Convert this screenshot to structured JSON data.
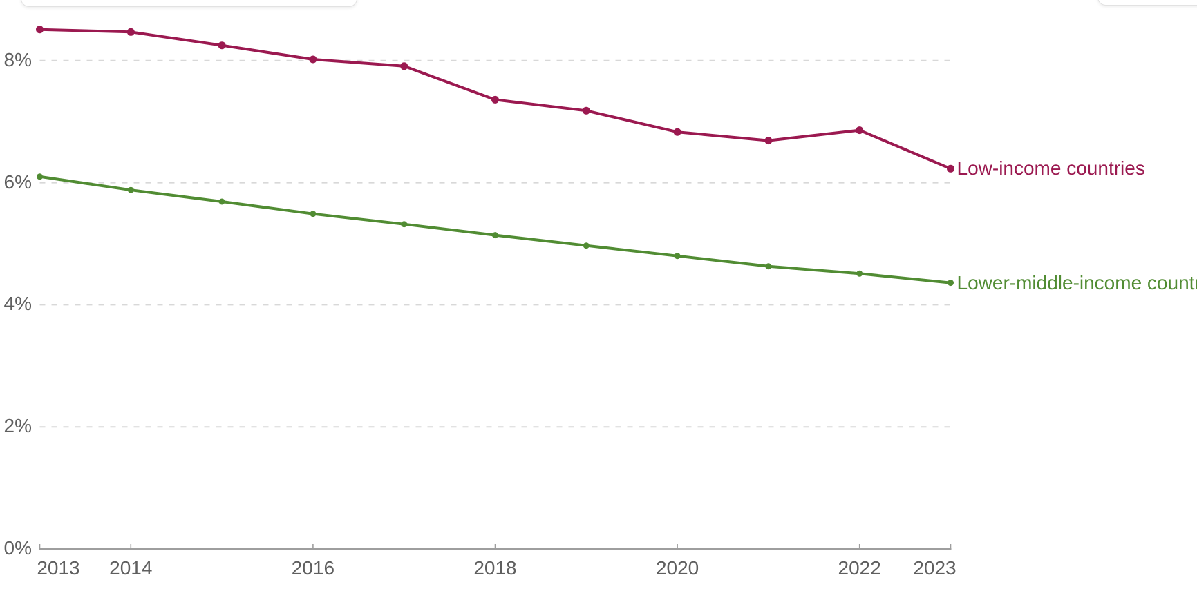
{
  "chart_data": {
    "type": "line",
    "title": "",
    "xlabel": "",
    "ylabel": "",
    "grid": "horizontal-dashed",
    "legend_position": "line-end-labels",
    "x": [
      2013,
      2014,
      2015,
      2016,
      2017,
      2018,
      2019,
      2020,
      2021,
      2022,
      2023
    ],
    "series": [
      {
        "name": "Low-income countries",
        "color": "#9B1950",
        "values": [
          8.51,
          8.47,
          8.25,
          8.02,
          7.91,
          7.36,
          7.18,
          6.83,
          6.69,
          6.86,
          6.23
        ]
      },
      {
        "name": "Lower-middle-income countries",
        "color": "#518C33",
        "values": [
          6.1,
          5.88,
          5.69,
          5.49,
          5.32,
          5.14,
          4.97,
          4.8,
          4.63,
          4.51,
          4.36
        ]
      }
    ],
    "ylim": [
      0,
      9
    ],
    "yticks": [
      {
        "value": 0,
        "label": "0%"
      },
      {
        "value": 2,
        "label": "2%"
      },
      {
        "value": 4,
        "label": "4%"
      },
      {
        "value": 6,
        "label": "6%"
      },
      {
        "value": 8,
        "label": "8%"
      }
    ],
    "xticks": [
      {
        "year": 2013,
        "label": "2013"
      },
      {
        "year": 2014,
        "label": "2014"
      },
      {
        "year": 2016,
        "label": "2016"
      },
      {
        "year": 2018,
        "label": "2018"
      },
      {
        "year": 2020,
        "label": "2020"
      },
      {
        "year": 2022,
        "label": "2022"
      },
      {
        "year": 2023,
        "label": "2023"
      }
    ]
  },
  "colors": {
    "background": "#FFFFFF",
    "axis_text": "#5F5F5F",
    "gridline": "#D8D8D8",
    "axis_line": "#9E9E9E"
  }
}
